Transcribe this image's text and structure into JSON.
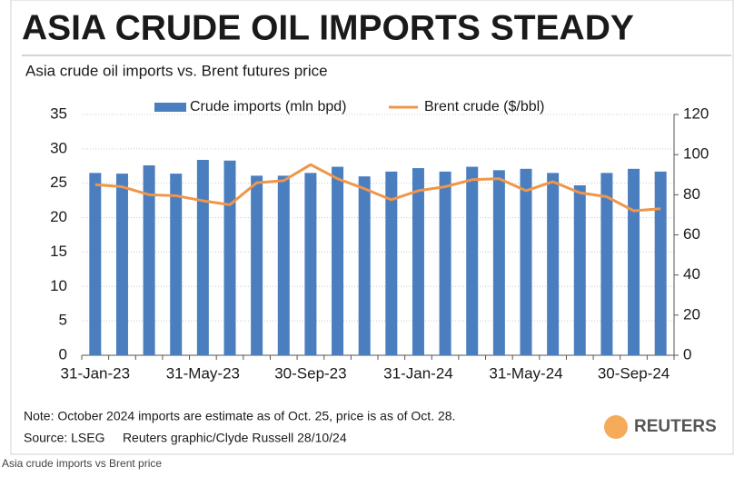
{
  "chart_data": {
    "type": "bar",
    "title": "ASIA CRUDE OIL IMPORTS STEADY",
    "subtitle": "Asia crude oil imports vs. Brent futures price",
    "categories": [
      "31-Jan-23",
      null,
      null,
      null,
      "31-May-23",
      null,
      null,
      null,
      "30-Sep-23",
      null,
      null,
      null,
      "31-Jan-24",
      null,
      null,
      null,
      "31-May-24",
      null,
      null,
      null,
      "30-Sep-24",
      null
    ],
    "series": [
      {
        "name": "Crude imports (mln bpd)",
        "type": "bar",
        "color": "#4a7ebf",
        "values": [
          26.5,
          26.4,
          27.6,
          26.4,
          28.4,
          28.3,
          26.1,
          26.1,
          26.5,
          27.4,
          26.0,
          26.7,
          27.2,
          26.7,
          27.4,
          26.9,
          27.1,
          26.5,
          24.7,
          26.5,
          27.1,
          26.7
        ]
      },
      {
        "name": "Brent crude ($/bbl)",
        "type": "line",
        "axis": "y2",
        "color": "#f0964a",
        "values": [
          85,
          84,
          80,
          79.5,
          77,
          75,
          86,
          87,
          95,
          88,
          83,
          77.5,
          82,
          84,
          87.5,
          88,
          82,
          86.5,
          81,
          79,
          72,
          73
        ]
      }
    ],
    "ylim": [
      0,
      35
    ],
    "yticks": [
      0,
      5,
      10,
      15,
      20,
      25,
      30,
      35
    ],
    "y2lim": [
      0,
      120
    ],
    "y2ticks": [
      0,
      20,
      40,
      60,
      80,
      100,
      120
    ],
    "grid": true,
    "note": "Note: October 2024 imports are estimate as of Oct. 25, price is as of Oct. 28.",
    "source": "Source: LSEG     Reuters graphic/Clyde Russell 28/10/24",
    "brand": "REUTERS",
    "caption": "Asia crude imports vs Brent price"
  }
}
